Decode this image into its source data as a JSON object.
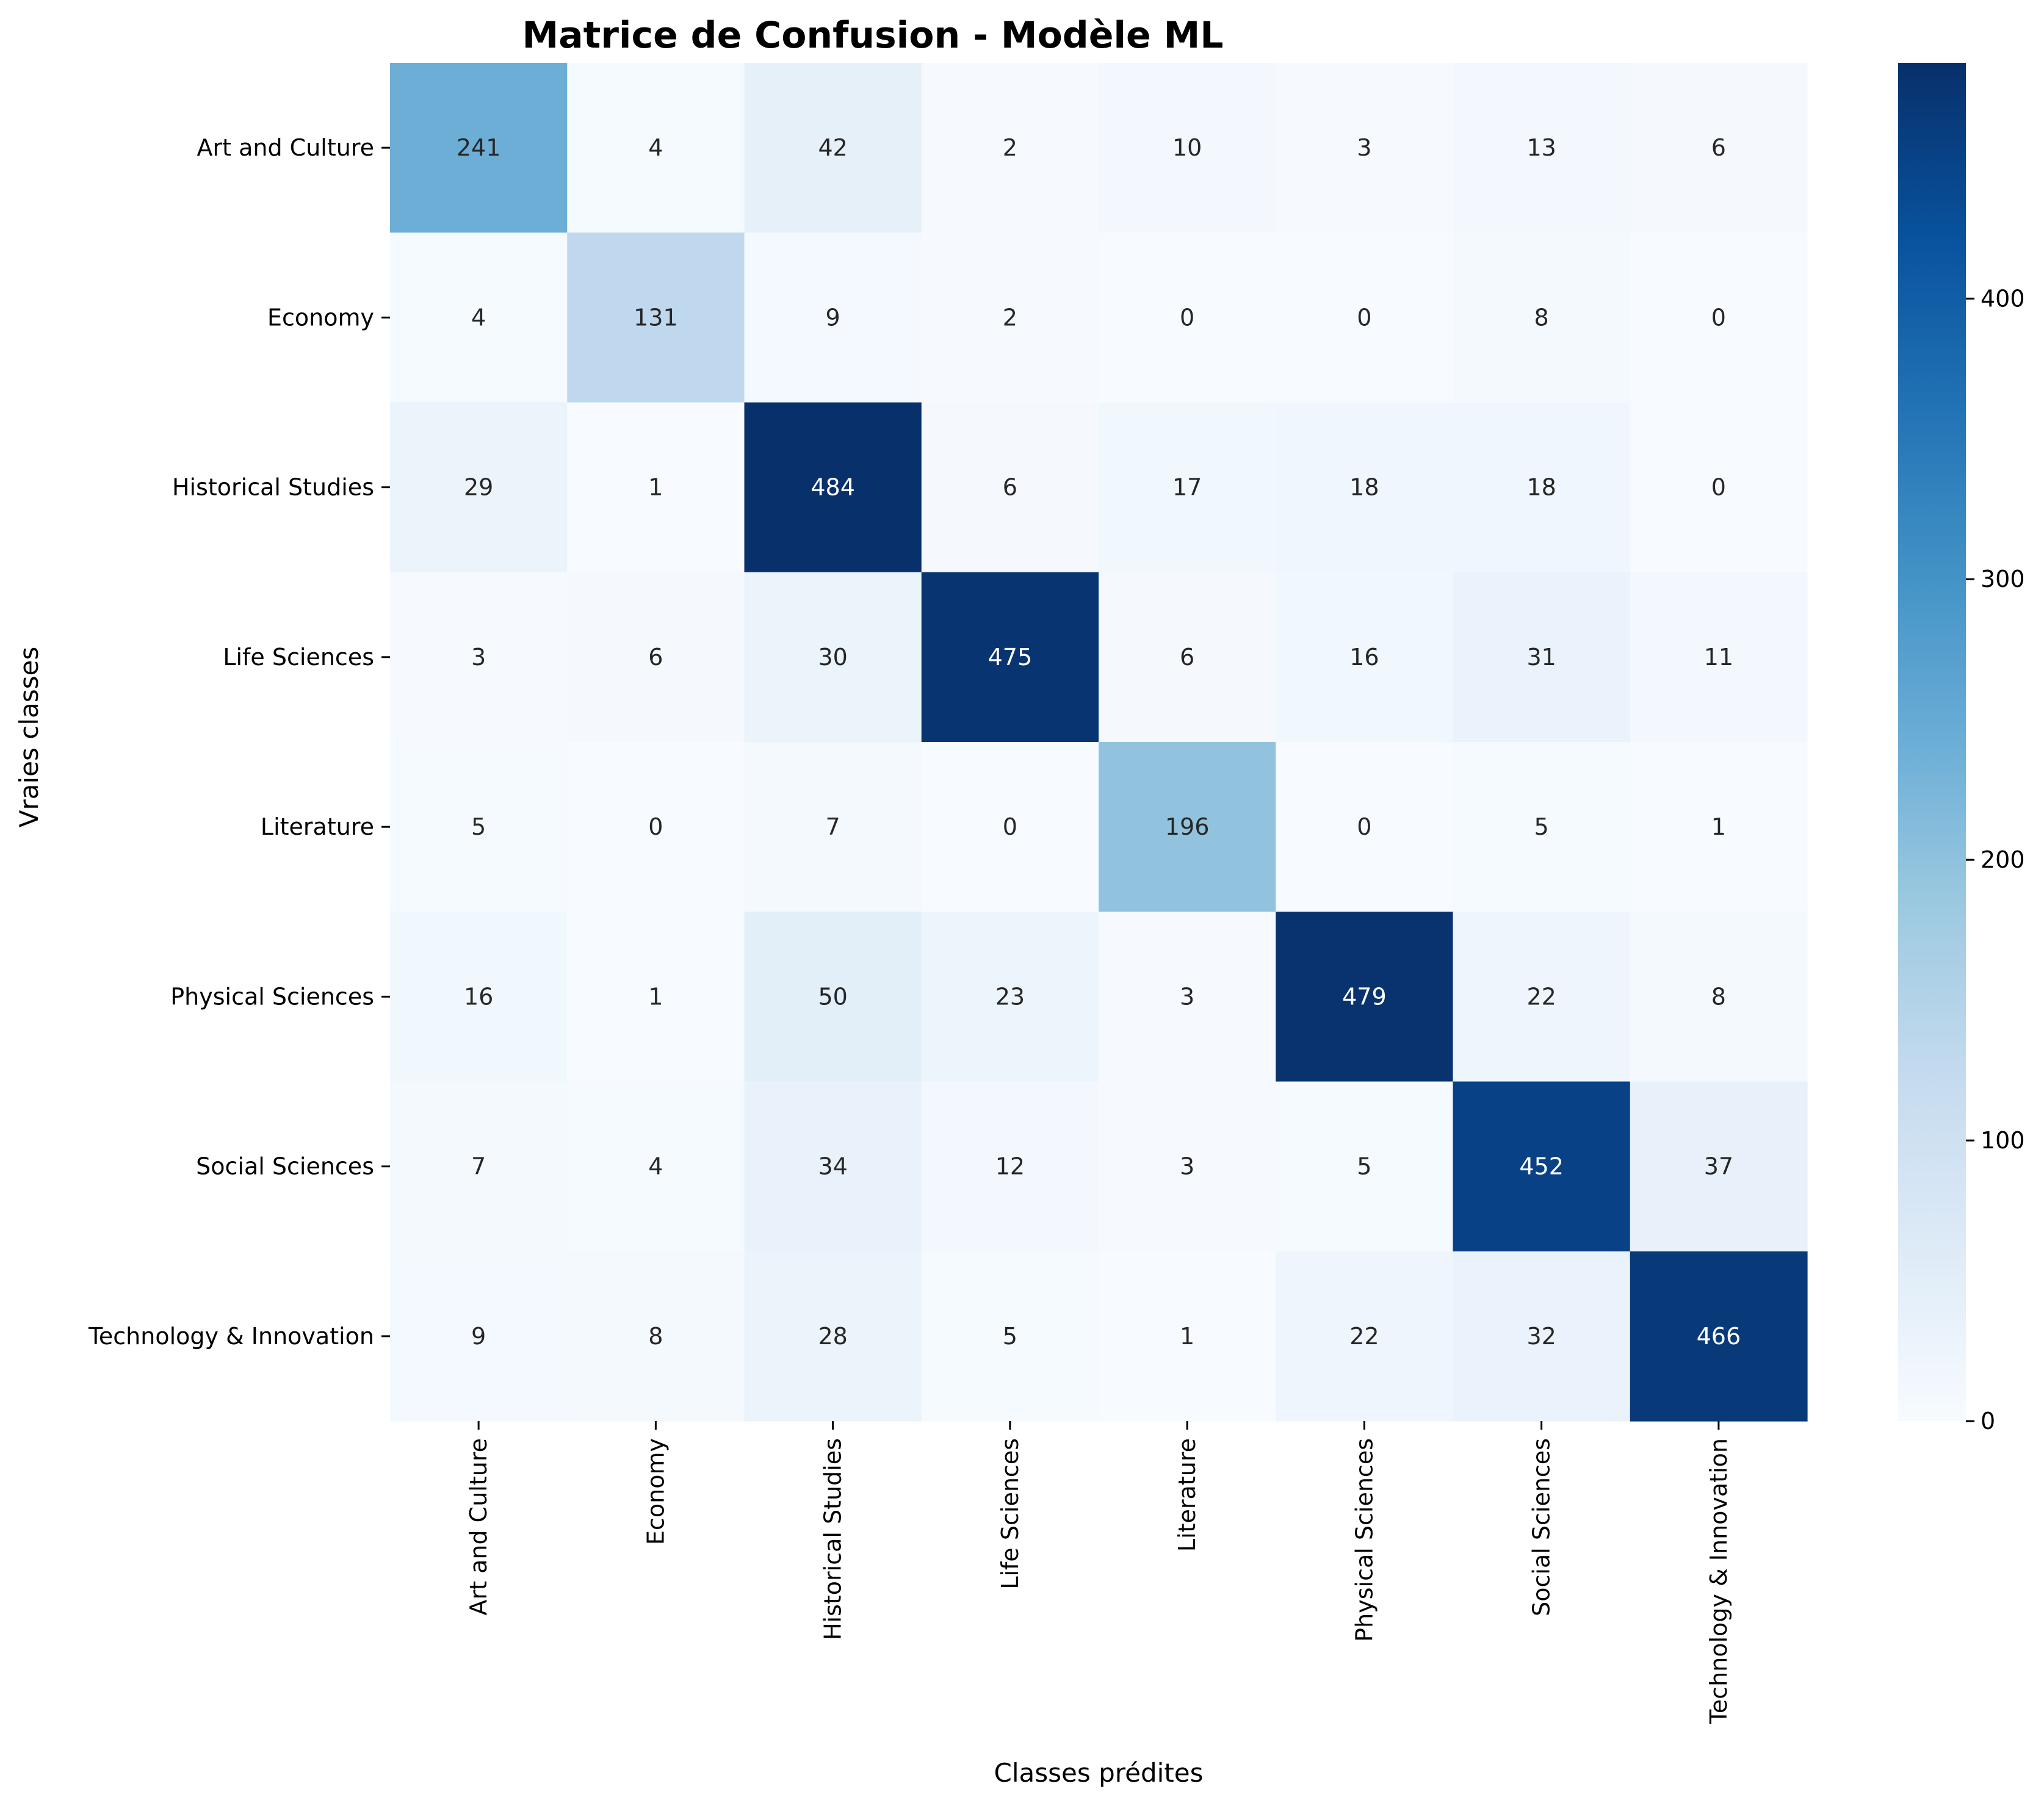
{
  "chart_data": {
    "type": "heatmap",
    "title": "Matrice de Confusion - Modèle ML",
    "xlabel": "Classes prédites",
    "ylabel": "Vraies classes",
    "categories": [
      "Art and Culture",
      "Economy",
      "Historical Studies",
      "Life Sciences",
      "Literature",
      "Physical Sciences",
      "Social Sciences",
      "Technology & Innovation"
    ],
    "matrix": [
      [
        241,
        4,
        42,
        2,
        10,
        3,
        13,
        6
      ],
      [
        4,
        131,
        9,
        2,
        0,
        0,
        8,
        0
      ],
      [
        29,
        1,
        484,
        6,
        17,
        18,
        18,
        0
      ],
      [
        3,
        6,
        30,
        475,
        6,
        16,
        31,
        11
      ],
      [
        5,
        0,
        7,
        0,
        196,
        0,
        5,
        1
      ],
      [
        16,
        1,
        50,
        23,
        3,
        479,
        22,
        8
      ],
      [
        7,
        4,
        34,
        12,
        3,
        5,
        452,
        37
      ],
      [
        9,
        8,
        28,
        5,
        1,
        22,
        32,
        466
      ]
    ],
    "colormap": "Blues",
    "colorbar": {
      "min": 0,
      "max": 484,
      "ticks": [
        0,
        100,
        200,
        300,
        400
      ]
    },
    "colors": {
      "low": "#f7fbff",
      "high": "#08306b",
      "annotation_dark": "#262626",
      "annotation_light": "#ffffff"
    },
    "grid": false
  }
}
